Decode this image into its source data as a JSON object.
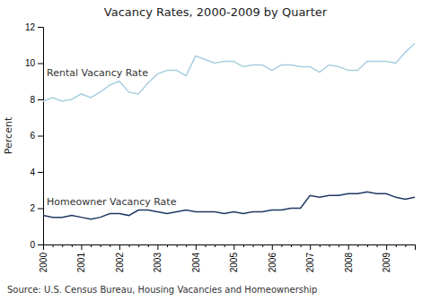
{
  "chart_data": {
    "type": "line",
    "title": "Vacancy Rates, 2000-2009 by Quarter",
    "ylabel": "Percent",
    "annotations": [
      "Source: U.S. Census Bureau, Housing Vacancies and Homeownership"
    ],
    "categories": [
      "2000",
      null,
      null,
      null,
      "2001",
      null,
      null,
      null,
      "2002",
      null,
      null,
      null,
      "2003",
      null,
      null,
      null,
      "2004",
      null,
      null,
      null,
      "2005",
      null,
      null,
      null,
      "2006",
      null,
      null,
      null,
      "2007",
      null,
      null,
      null,
      "2008",
      null,
      null,
      null,
      "2009",
      null,
      null,
      null
    ],
    "series": [
      {
        "name": "Rental Vacancy Rate",
        "color": "#a8cfe0",
        "values": [
          7.9,
          8.1,
          7.9,
          8.0,
          8.3,
          8.1,
          8.4,
          8.8,
          9.0,
          8.4,
          8.3,
          8.9,
          9.4,
          9.6,
          9.6,
          9.3,
          10.4,
          10.2,
          10.0,
          10.1,
          10.1,
          9.8,
          9.9,
          9.9,
          9.6,
          9.9,
          9.9,
          9.8,
          9.8,
          9.5,
          9.9,
          9.8,
          9.6,
          9.6,
          10.1,
          10.1,
          10.1,
          10.0,
          10.6,
          11.1
        ]
      },
      {
        "name": "Homeowner Vacancy Rate",
        "color": "#1f3864",
        "values": [
          1.6,
          1.5,
          1.5,
          1.6,
          1.5,
          1.4,
          1.5,
          1.7,
          1.7,
          1.6,
          1.9,
          1.9,
          1.8,
          1.7,
          1.8,
          1.9,
          1.8,
          1.8,
          1.8,
          1.7,
          1.8,
          1.7,
          1.8,
          1.8,
          1.9,
          1.9,
          2.0,
          2.0,
          2.7,
          2.6,
          2.7,
          2.7,
          2.8,
          2.8,
          2.9,
          2.8,
          2.8,
          2.6,
          2.5,
          2.6
        ]
      }
    ],
    "ylim": [
      0,
      12
    ],
    "yticks": [
      0,
      2,
      4,
      6,
      8,
      10,
      12
    ],
    "grid": false
  }
}
